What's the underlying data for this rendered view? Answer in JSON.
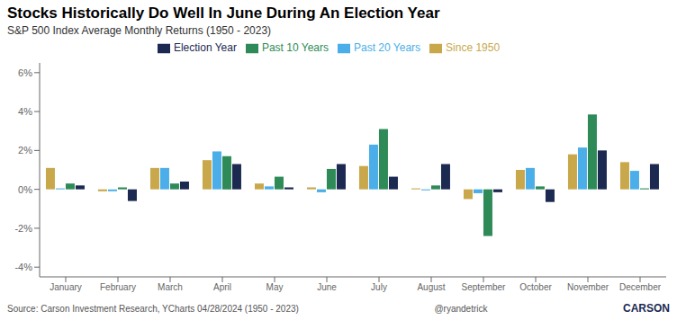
{
  "chart_data": {
    "type": "bar",
    "title": "Stocks Historically Do Well In June During An Election Year",
    "subtitle": "S&P 500 Index Average Monthly Returns (1950 - 2023)",
    "annotations": [
      "Source: Carson Investment Research, YCharts 04/28/2024 (1950 - 2023)",
      "@ryandetrick",
      "CARSON"
    ],
    "categories": [
      "January",
      "February",
      "March",
      "April",
      "May",
      "June",
      "July",
      "August",
      "September",
      "October",
      "November",
      "December"
    ],
    "series": [
      {
        "name": "Since 1950",
        "color": "#C9A84C",
        "values": [
          1.1,
          -0.1,
          1.1,
          1.5,
          0.3,
          0.1,
          1.2,
          0.05,
          -0.5,
          1.0,
          1.8,
          1.4
        ]
      },
      {
        "name": "Past 20 Years",
        "color": "#4BAEE8",
        "values": [
          0.05,
          -0.1,
          1.1,
          1.95,
          0.15,
          -0.15,
          2.3,
          -0.05,
          -0.2,
          1.1,
          2.15,
          0.95
        ]
      },
      {
        "name": "Past 10 Years",
        "color": "#2E8B57",
        "values": [
          0.3,
          0.1,
          0.3,
          1.7,
          0.65,
          1.05,
          3.1,
          0.2,
          -2.4,
          0.15,
          3.85,
          0.05
        ]
      },
      {
        "name": "Election Year",
        "color": "#1C2951",
        "values": [
          0.2,
          -0.6,
          0.4,
          1.3,
          0.1,
          1.3,
          0.65,
          1.3,
          -0.15,
          -0.65,
          2.0,
          1.3
        ]
      }
    ],
    "ylim": [
      -4.5,
      6.5
    ],
    "yticks": [
      {
        "value": -4,
        "label": "-4%"
      },
      {
        "value": -2,
        "label": "-2%"
      },
      {
        "value": 0,
        "label": "0%"
      },
      {
        "value": 2,
        "label": "2%"
      },
      {
        "value": 4,
        "label": "4%"
      },
      {
        "value": 6,
        "label": "6%"
      }
    ],
    "grid": false
  }
}
